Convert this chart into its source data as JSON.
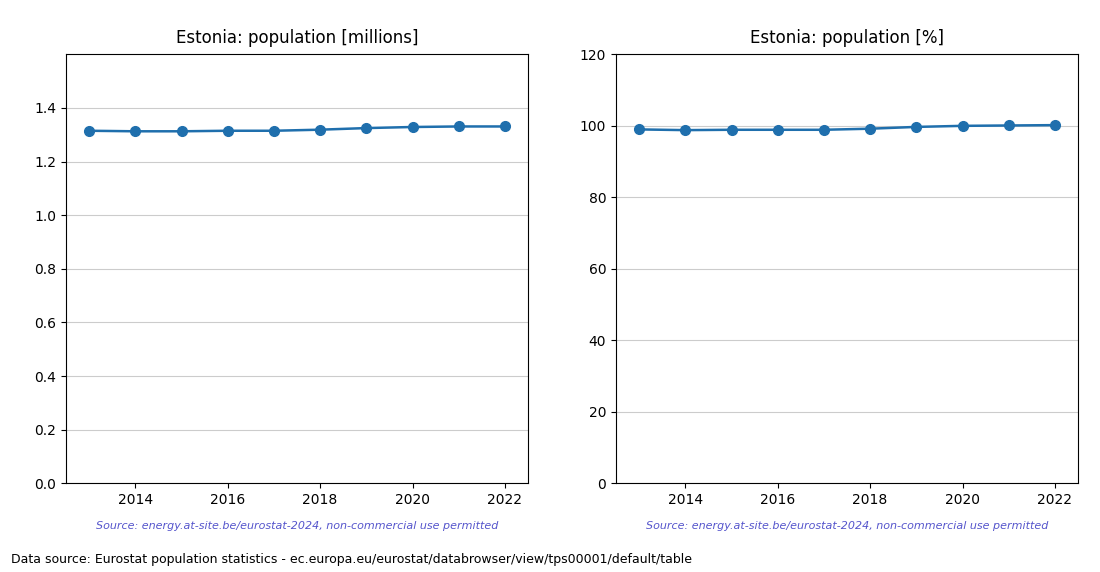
{
  "years": [
    2013,
    2014,
    2015,
    2016,
    2017,
    2018,
    2019,
    2020,
    2021,
    2022
  ],
  "population_millions": [
    1.315,
    1.313,
    1.313,
    1.315,
    1.315,
    1.319,
    1.325,
    1.329,
    1.331,
    1.331
  ],
  "population_pct": [
    99.0,
    98.8,
    98.9,
    98.9,
    98.9,
    99.2,
    99.7,
    100.0,
    100.1,
    100.2
  ],
  "title_millions": "Estonia: population [millions]",
  "title_pct": "Estonia: population [%]",
  "source_text": "Source: energy.at-site.be/eurostat-2024, non-commercial use permitted",
  "footer_text": "Data source: Eurostat population statistics - ec.europa.eu/eurostat/databrowser/view/tps00001/default/table",
  "line_color": "#1f6fad",
  "source_color": "#5555cc",
  "ylim_millions": [
    0.0,
    1.6
  ],
  "ylim_pct": [
    0,
    120
  ],
  "yticks_millions": [
    0.0,
    0.2,
    0.4,
    0.6,
    0.8,
    1.0,
    1.2,
    1.4
  ],
  "yticks_pct": [
    0,
    20,
    40,
    60,
    80,
    100,
    120
  ],
  "marker_size": 7,
  "line_width": 1.8
}
